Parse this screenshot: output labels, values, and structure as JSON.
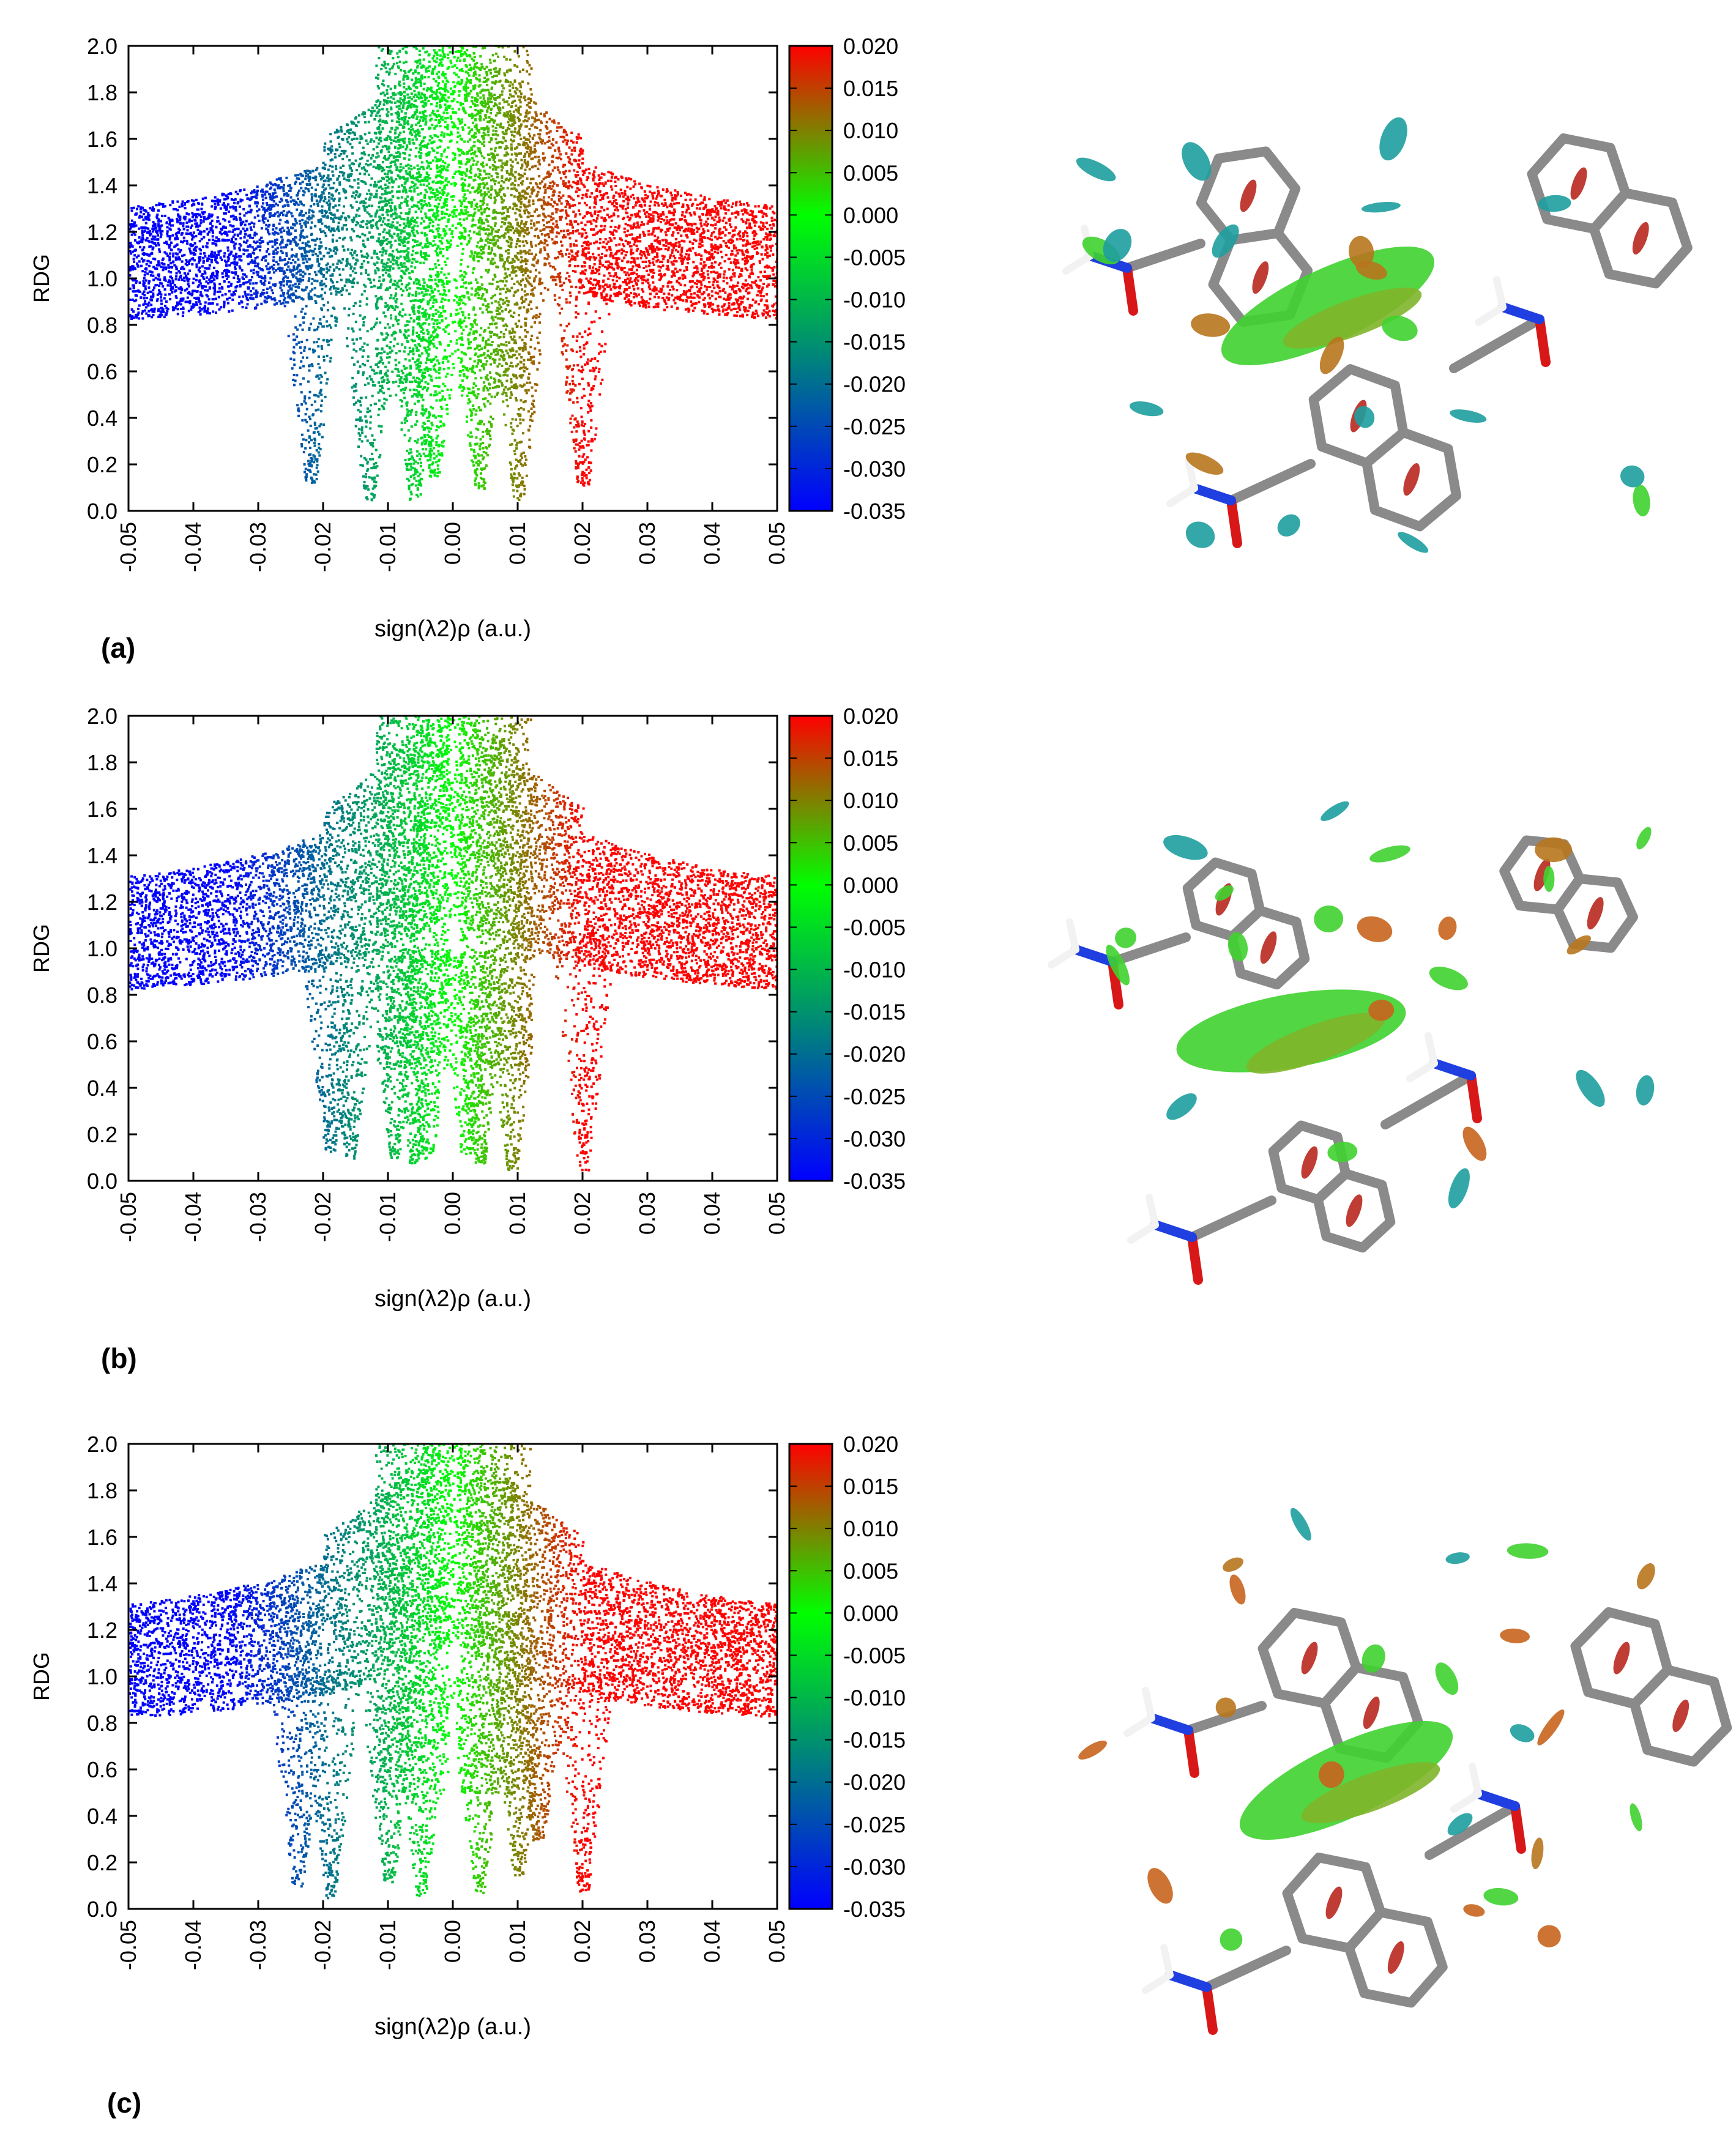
{
  "panels": [
    {
      "label": "(a)",
      "chart_data": {
        "type": "scatter",
        "xlabel": "sign(λ2)ρ (a.u.)",
        "ylabel": "RDG",
        "xlim": [
          -0.05,
          0.05
        ],
        "ylim": [
          0.0,
          2.0
        ],
        "xticks": [
          "-0.05",
          "-0.04",
          "-0.03",
          "-0.02",
          "-0.01",
          "0.00",
          "0.01",
          "0.02",
          "0.03",
          "0.04",
          "0.05"
        ],
        "yticks": [
          "0.0",
          "0.2",
          "0.4",
          "0.6",
          "0.8",
          "1.0",
          "1.2",
          "1.4",
          "1.6",
          "1.8",
          "2.0"
        ],
        "colorbar": {
          "range": [
            -0.035,
            0.02
          ],
          "ticks": [
            "0.020",
            "0.015",
            "0.010",
            "0.005",
            "0.000",
            "-0.005",
            "-0.010",
            "-0.015",
            "-0.020",
            "-0.025",
            "-0.030",
            "-0.035"
          ],
          "colors": [
            "#0000ff",
            "#00ff00",
            "#ff0000"
          ]
        },
        "spikes": [
          [
            -0.022,
            0.12
          ],
          [
            -0.013,
            0.05
          ],
          [
            -0.006,
            0.05
          ],
          [
            -0.003,
            0.15
          ],
          [
            0.004,
            0.1
          ],
          [
            0.01,
            0.05
          ],
          [
            0.02,
            0.1
          ]
        ]
      }
    },
    {
      "label": "(b)",
      "chart_data": {
        "type": "scatter",
        "xlabel": "sign(λ2)ρ (a.u.)",
        "ylabel": "RDG",
        "xlim": [
          -0.05,
          0.05
        ],
        "ylim": [
          0.0,
          2.0
        ],
        "xticks": [
          "-0.05",
          "-0.04",
          "-0.03",
          "-0.02",
          "-0.01",
          "0.00",
          "0.01",
          "0.02",
          "0.03",
          "0.04",
          "0.05"
        ],
        "yticks": [
          "0.0",
          "0.2",
          "0.4",
          "0.6",
          "0.8",
          "1.0",
          "1.2",
          "1.4",
          "1.6",
          "1.8",
          "2.0"
        ],
        "colorbar": {
          "range": [
            -0.035,
            0.02
          ],
          "ticks": [
            "0.020",
            "0.015",
            "0.010",
            "0.005",
            "0.000",
            "-0.005",
            "-0.010",
            "-0.015",
            "-0.020",
            "-0.025",
            "-0.030",
            "-0.035"
          ],
          "colors": [
            "#0000ff",
            "#00ff00",
            "#ff0000"
          ]
        },
        "spikes": [
          [
            -0.019,
            0.12
          ],
          [
            -0.016,
            0.1
          ],
          [
            -0.009,
            0.1
          ],
          [
            -0.006,
            0.08
          ],
          [
            -0.004,
            0.1
          ],
          [
            0.002,
            0.12
          ],
          [
            0.004,
            0.08
          ],
          [
            0.009,
            0.05
          ],
          [
            0.02,
            0.05
          ]
        ]
      }
    },
    {
      "label": "(c)",
      "chart_data": {
        "type": "scatter",
        "xlabel": "sign(λ2)ρ (a.u.)",
        "ylabel": "RDG",
        "xlim": [
          -0.05,
          0.05
        ],
        "ylim": [
          0.0,
          2.0
        ],
        "xticks": [
          "-0.05",
          "-0.04",
          "-0.03",
          "-0.02",
          "-0.01",
          "0.00",
          "0.01",
          "0.02",
          "0.03",
          "0.04",
          "0.05"
        ],
        "yticks": [
          "0.0",
          "0.2",
          "0.4",
          "0.6",
          "0.8",
          "1.0",
          "1.2",
          "1.4",
          "1.6",
          "1.8",
          "2.0"
        ],
        "colorbar": {
          "range": [
            -0.035,
            0.02
          ],
          "ticks": [
            "0.020",
            "0.015",
            "0.010",
            "0.005",
            "0.000",
            "-0.005",
            "-0.010",
            "-0.015",
            "-0.020",
            "-0.025",
            "-0.030",
            "-0.035"
          ],
          "colors": [
            "#0000ff",
            "#00ff00",
            "#ff0000"
          ]
        },
        "spikes": [
          [
            -0.024,
            0.1
          ],
          [
            -0.019,
            0.05
          ],
          [
            -0.01,
            0.12
          ],
          [
            -0.005,
            0.06
          ],
          [
            0.004,
            0.07
          ],
          [
            0.01,
            0.15
          ],
          [
            0.013,
            0.3
          ],
          [
            0.02,
            0.08
          ]
        ]
      }
    }
  ],
  "molecule": {
    "atom_colors": {
      "carbon": "#8a8a8a",
      "nitrogen": "#1f3fe0",
      "oxygen": "#d81818",
      "hydrogen": "#f2f2f2"
    },
    "surface_colors": [
      "#3fd22f",
      "#c8641e",
      "#1e9e9e",
      "#b8761e"
    ]
  }
}
